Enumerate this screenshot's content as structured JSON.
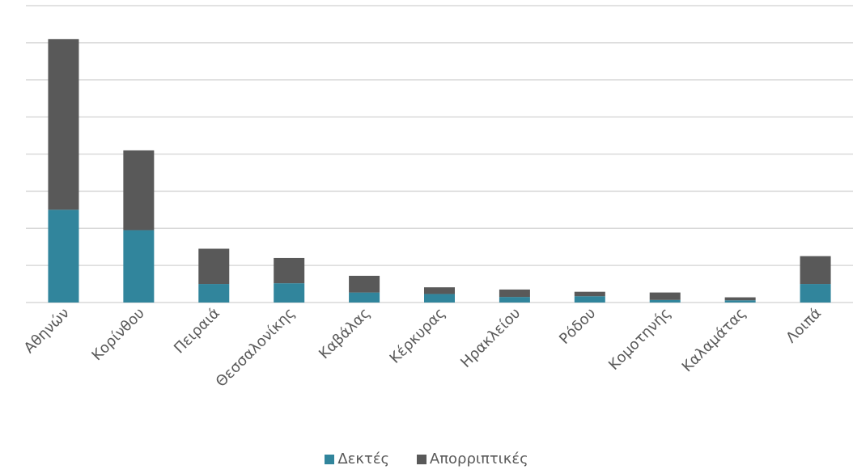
{
  "chart_data": {
    "type": "bar",
    "stacked": true,
    "categories": [
      "Αθηνών",
      "Κορίνθου",
      "Πειραιά",
      "Θεσσαλονίκης",
      "Καβάλας",
      "Κέρκυρας",
      "Ηρακλείου",
      "Ρόδου",
      "Κομοτηνής",
      "Καλαμάτας",
      "Λοιπά"
    ],
    "series": [
      {
        "name": "Δεκτές",
        "color": "#31859c",
        "values": [
          2.5,
          1.95,
          0.5,
          0.52,
          0.27,
          0.23,
          0.15,
          0.17,
          0.07,
          0.06,
          0.5
        ]
      },
      {
        "name": "Απορριπτικές",
        "color": "#595959",
        "values": [
          4.6,
          2.15,
          0.95,
          0.68,
          0.45,
          0.18,
          0.2,
          0.12,
          0.2,
          0.08,
          0.75
        ]
      }
    ],
    "ylim": [
      0,
      8
    ],
    "gridlines": true,
    "y_tick_labels_shown": false,
    "legend_position": "bottom"
  }
}
